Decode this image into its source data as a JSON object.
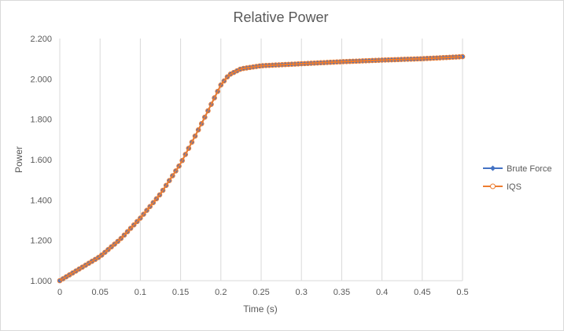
{
  "chart_data": {
    "type": "line",
    "title": "Relative Power",
    "xlabel": "Time (s)",
    "ylabel": "Power",
    "xlim": [
      0,
      0.5
    ],
    "ylim": [
      1.0,
      2.2
    ],
    "x_ticks": [
      "0",
      "0.05",
      "0.1",
      "0.15",
      "0.2",
      "0.25",
      "0.3",
      "0.35",
      "0.4",
      "0.45",
      "0.5"
    ],
    "y_ticks": [
      "1.000",
      "1.200",
      "1.400",
      "1.600",
      "1.800",
      "2.000",
      "2.200"
    ],
    "grid": {
      "vertical": true,
      "horizontal": false
    },
    "legend_position": "right",
    "series": [
      {
        "name": "Brute Force",
        "color": "#4472C4",
        "marker": "diamond"
      },
      {
        "name": "IQS",
        "color": "#ED7D31",
        "marker": "circle"
      }
    ],
    "x": [
      0,
      0.025,
      0.05,
      0.075,
      0.1,
      0.125,
      0.15,
      0.175,
      0.2,
      0.21,
      0.225,
      0.25,
      0.3,
      0.35,
      0.4,
      0.45,
      0.5
    ],
    "y": [
      1.0,
      1.06,
      1.12,
      1.205,
      1.31,
      1.43,
      1.58,
      1.77,
      1.97,
      2.02,
      2.05,
      2.065,
      2.075,
      2.085,
      2.093,
      2.1,
      2.11
    ],
    "marker_step": 0.004
  }
}
